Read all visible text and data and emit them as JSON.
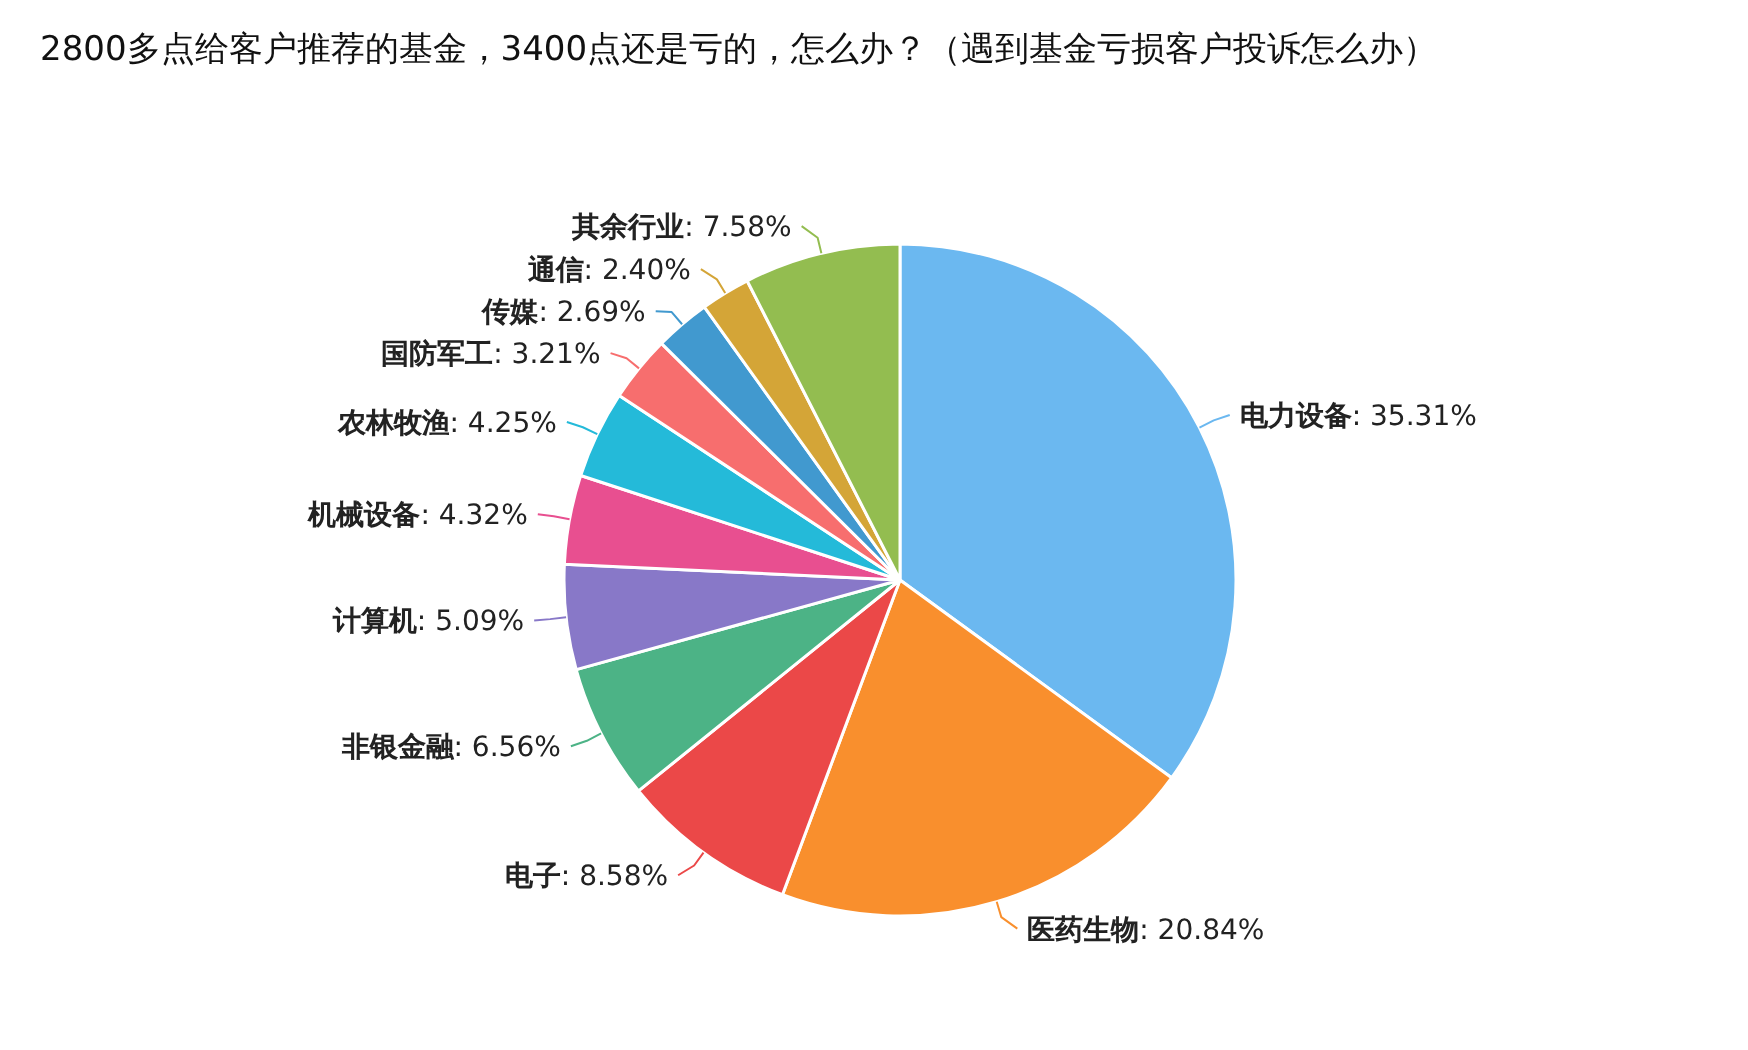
{
  "chart_data": {
    "type": "pie",
    "title": "2800多点给客户推荐的基金，3400点还是亏的，怎么办？（遇到基金亏损客户投诉怎么办）",
    "categories": [
      "电力设备",
      "医药生物",
      "电子",
      "非银金融",
      "计算机",
      "机械设备",
      "农林牧渔",
      "国防军工",
      "传媒",
      "通信",
      "其余行业"
    ],
    "values": [
      35.31,
      20.84,
      8.58,
      6.56,
      5.09,
      4.32,
      4.25,
      3.21,
      2.69,
      2.4,
      7.58
    ],
    "value_labels": [
      ": 35.31%",
      ": 20.84%",
      ": 8.58%",
      ": 6.56%",
      ": 5.09%",
      ": 4.32%",
      ": 4.25%",
      ": 3.21%",
      ": 2.69%",
      ": 2.40%",
      ": 7.58%"
    ],
    "colors": [
      "#6bb8f0",
      "#f98f2d",
      "#eb4848",
      "#4cb386",
      "#8878c8",
      "#e84f90",
      "#24bad9",
      "#f76e6e",
      "#4199cf",
      "#d4a537",
      "#93bd50"
    ]
  }
}
